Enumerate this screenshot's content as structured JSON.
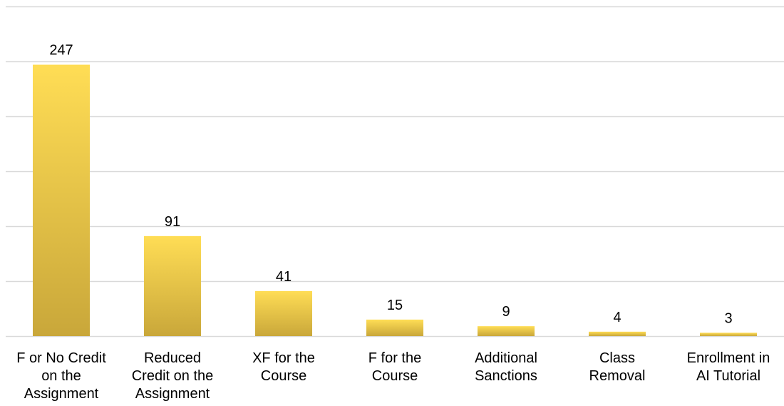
{
  "chart_data": {
    "type": "bar",
    "title": "",
    "xlabel": "",
    "ylabel": "",
    "categories": [
      [
        "F or No Credit",
        "on the",
        "Assignment"
      ],
      [
        "Reduced",
        "Credit on the",
        "Assignment"
      ],
      [
        "XF for the",
        "Course"
      ],
      [
        "F for the",
        "Course"
      ],
      [
        "Additional",
        "Sanctions"
      ],
      [
        "Class",
        "Removal"
      ],
      [
        "Enrollment in",
        "AI Tutorial"
      ]
    ],
    "values": [
      247,
      91,
      41,
      15,
      9,
      4,
      3
    ],
    "ylim": [
      0,
      300
    ],
    "gridlines": [
      0,
      50,
      100,
      150,
      200,
      250,
      300
    ],
    "grid": true,
    "y_tick_labels_shown": false,
    "legend": "none",
    "colors": {
      "bar_top": "#FFDD55",
      "bar_bottom": "#C9A73A",
      "grid": "#D9D9D9",
      "text": "#000000"
    }
  }
}
